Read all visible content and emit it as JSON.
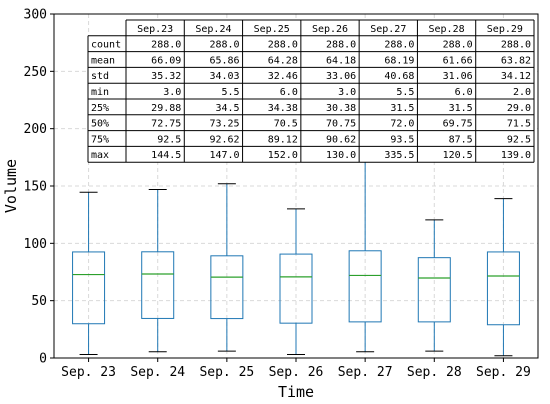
{
  "chart_data": {
    "type": "box",
    "xlabel": "Time",
    "ylabel": "Volume",
    "ylim": [
      0,
      300
    ],
    "yticks": [
      0,
      50,
      100,
      150,
      200,
      250,
      300
    ],
    "grid": true,
    "categories": [
      "Sep.23",
      "Sep.24",
      "Sep.25",
      "Sep.26",
      "Sep.27",
      "Sep.28",
      "Sep.29"
    ],
    "x_tick_labels": [
      "Sep. 23",
      "Sep. 24",
      "Sep. 25",
      "Sep. 26",
      "Sep. 27",
      "Sep. 28",
      "Sep. 29"
    ],
    "boxes": [
      {
        "whisker_low": 3.0,
        "q1": 29.88,
        "median": 72.75,
        "q3": 92.5,
        "whisker_high": 144.5
      },
      {
        "whisker_low": 5.5,
        "q1": 34.5,
        "median": 73.25,
        "q3": 92.62,
        "whisker_high": 147.0
      },
      {
        "whisker_low": 6.0,
        "q1": 34.38,
        "median": 70.5,
        "q3": 89.12,
        "whisker_high": 152.0
      },
      {
        "whisker_low": 3.0,
        "q1": 30.38,
        "median": 70.75,
        "q3": 90.62,
        "whisker_high": 130.0
      },
      {
        "whisker_low": 5.5,
        "q1": 31.5,
        "median": 72.0,
        "q3": 93.5,
        "whisker_high": 175.0
      },
      {
        "whisker_low": 6.0,
        "q1": 31.5,
        "median": 69.75,
        "q3": 87.5,
        "whisker_high": 120.5
      },
      {
        "whisker_low": 2.0,
        "q1": 29.0,
        "median": 71.5,
        "q3": 92.5,
        "whisker_high": 139.0
      }
    ],
    "colors": {
      "box": "#1f77b4",
      "median": "#2ca02c",
      "whisker_cap": "#000000",
      "grid": "#d9d9d9"
    },
    "table": {
      "columns": [
        "Sep.23",
        "Sep.24",
        "Sep.25",
        "Sep.26",
        "Sep.27",
        "Sep.28",
        "Sep.29"
      ],
      "rows": [
        {
          "label": "count",
          "values": [
            "288.0",
            "288.0",
            "288.0",
            "288.0",
            "288.0",
            "288.0",
            "288.0"
          ]
        },
        {
          "label": "mean",
          "values": [
            "66.09",
            "65.86",
            "64.28",
            "64.18",
            "68.19",
            "61.66",
            "63.82"
          ]
        },
        {
          "label": "std",
          "values": [
            "35.32",
            "34.03",
            "32.46",
            "33.06",
            "40.68",
            "31.06",
            "34.12"
          ]
        },
        {
          "label": "min",
          "values": [
            "3.0",
            "5.5",
            "6.0",
            "3.0",
            "5.5",
            "6.0",
            "2.0"
          ]
        },
        {
          "label": "25%",
          "values": [
            "29.88",
            "34.5",
            "34.38",
            "30.38",
            "31.5",
            "31.5",
            "29.0"
          ]
        },
        {
          "label": "50%",
          "values": [
            "72.75",
            "73.25",
            "70.5",
            "70.75",
            "72.0",
            "69.75",
            "71.5"
          ]
        },
        {
          "label": "75%",
          "values": [
            "92.5",
            "92.62",
            "89.12",
            "90.62",
            "93.5",
            "87.5",
            "92.5"
          ]
        },
        {
          "label": "max",
          "values": [
            "144.5",
            "147.0",
            "152.0",
            "130.0",
            "335.5",
            "120.5",
            "139.0"
          ]
        }
      ]
    }
  }
}
